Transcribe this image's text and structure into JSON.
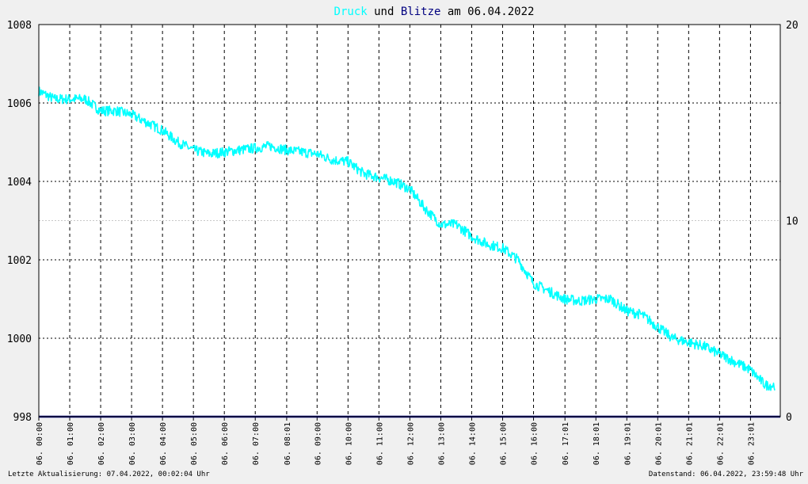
{
  "title": {
    "part1": "Druck",
    "part2": " und ",
    "part3": "Blitze",
    "part4": " am 06.04.2022"
  },
  "footer": {
    "left": "Letzte Aktualisierung: 07.04.2022, 00:02:04 Uhr",
    "right": "Datenstand: 06.04.2022, 23:59:48 Uhr"
  },
  "colors": {
    "background": "#f0f0f0",
    "plot_background": "#ffffff",
    "pressure": "#00ffff",
    "lightning": "#000080",
    "title_text": "#000000",
    "grid": "#000000"
  },
  "chart_data": {
    "type": "line",
    "title": "Druck und Blitze am 06.04.2022",
    "xlabel": "",
    "ylabel": "",
    "x_tick_labels": [
      "06. 00:00",
      "06. 01:00",
      "06. 02:00",
      "06. 03:00",
      "06. 04:00",
      "06. 05:00",
      "06. 06:00",
      "06. 07:00",
      "06. 08:01",
      "06. 09:00",
      "06. 10:00",
      "06. 11:00",
      "06. 12:00",
      "06. 13:00",
      "06. 14:00",
      "06. 15:00",
      "06. 16:00",
      "06. 17:01",
      "06. 18:01",
      "06. 19:01",
      "06. 20:01",
      "06. 21:01",
      "06. 22:01",
      "06. 23:01"
    ],
    "x_tick_hours": [
      0,
      1,
      2,
      3,
      4,
      5,
      6,
      7,
      8.0167,
      9,
      10,
      11,
      12,
      13,
      14,
      15,
      16,
      17.0167,
      18.0167,
      19.0167,
      20.0167,
      21.0167,
      22.0167,
      23.0167
    ],
    "xlim": [
      0,
      23.98
    ],
    "ylim_left": [
      998,
      1008
    ],
    "ylim_right": [
      0,
      20
    ],
    "left_ticks": [
      998,
      1000,
      1002,
      1004,
      1006,
      1008
    ],
    "right_ticks": [
      0,
      10,
      20
    ],
    "grid": true,
    "series": [
      {
        "name": "Druck",
        "axis": "left",
        "x": [
          0,
          0.5,
          1,
          1.5,
          2,
          2.5,
          3,
          3.5,
          4,
          4.5,
          5,
          5.5,
          6,
          6.5,
          7,
          7.5,
          8,
          8.5,
          9,
          9.5,
          10,
          10.5,
          11,
          11.5,
          12,
          12.5,
          13,
          13.5,
          14,
          14.5,
          15,
          15.5,
          16,
          16.5,
          17,
          17.5,
          18,
          18.5,
          19,
          19.5,
          20,
          20.5,
          21,
          21.5,
          22,
          22.5,
          23,
          23.5,
          23.8
        ],
        "values": [
          1006.3,
          1006.1,
          1006.1,
          1006.1,
          1005.8,
          1005.8,
          1005.7,
          1005.5,
          1005.3,
          1005.0,
          1004.8,
          1004.7,
          1004.75,
          1004.8,
          1004.85,
          1004.9,
          1004.8,
          1004.75,
          1004.7,
          1004.55,
          1004.5,
          1004.2,
          1004.1,
          1004.0,
          1003.8,
          1003.3,
          1002.9,
          1002.9,
          1002.6,
          1002.4,
          1002.3,
          1002.0,
          1001.4,
          1001.2,
          1001.0,
          1000.95,
          1001.0,
          1001.0,
          1000.7,
          1000.6,
          1000.3,
          1000.0,
          999.9,
          999.8,
          999.6,
          999.4,
          999.2,
          998.8,
          998.8
        ]
      },
      {
        "name": "Blitze",
        "axis": "right",
        "x": [
          0,
          23.98
        ],
        "values": [
          0,
          0
        ]
      }
    ]
  }
}
